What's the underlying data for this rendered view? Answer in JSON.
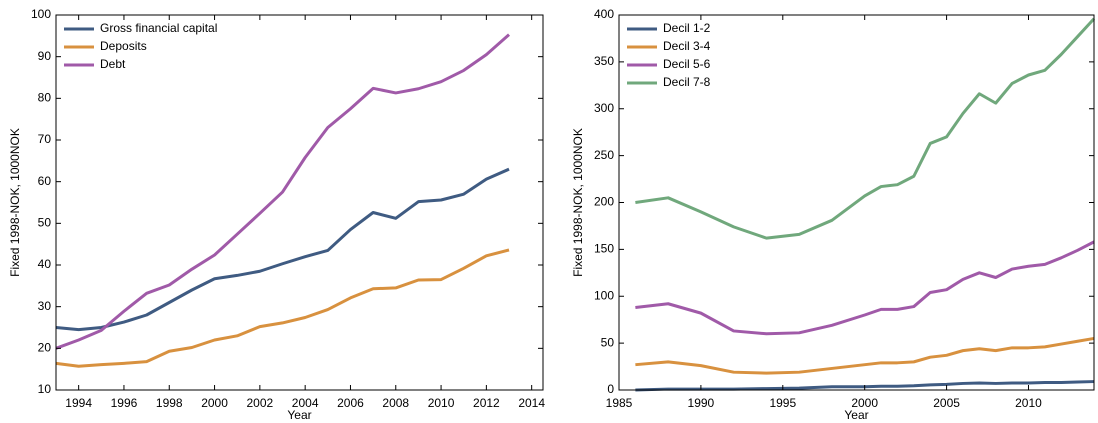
{
  "chart_data": [
    {
      "type": "line",
      "x_label": "Year",
      "y_label": "Fixed 1998-NOK, 1000NOK",
      "x": [
        1993,
        1994,
        1995,
        1996,
        1997,
        1998,
        1999,
        2000,
        2001,
        2002,
        2003,
        2004,
        2005,
        2006,
        2007,
        2008,
        2009,
        2010,
        2011,
        2012,
        2013
      ],
      "xlim": [
        1993,
        2014.5
      ],
      "xticks": [
        1994,
        1996,
        1998,
        2000,
        2002,
        2004,
        2006,
        2008,
        2010,
        2012,
        2014
      ],
      "ylim": [
        10,
        100
      ],
      "yticks": [
        10,
        20,
        30,
        40,
        50,
        60,
        70,
        80,
        90,
        100
      ],
      "legend": "upper-left",
      "series": [
        {
          "name": "Gross financial capital",
          "color": "#3f5b82",
          "values": [
            25,
            24.5,
            25,
            26.3,
            28,
            31,
            34,
            36.7,
            37.5,
            38.5,
            40.3,
            42,
            43.5,
            48.5,
            52.6,
            51.2,
            55.2,
            55.6,
            57,
            60.6,
            63
          ]
        },
        {
          "name": "Deposits",
          "color": "#d8913f",
          "values": [
            16.4,
            15.7,
            16.1,
            16.4,
            16.8,
            19.3,
            20.2,
            22,
            23,
            25.2,
            26.1,
            27.4,
            29.3,
            32.1,
            34.3,
            34.5,
            36.4,
            36.5,
            39.2,
            42.2,
            43.6
          ]
        },
        {
          "name": "Debt",
          "color": "#a05aa8",
          "values": [
            20,
            22,
            24.3,
            28.9,
            33.2,
            35.2,
            39,
            42.4,
            47.4,
            52.4,
            57.5,
            65.8,
            73,
            77.5,
            82.4,
            81.3,
            82.3,
            84,
            86.7,
            90.5,
            95.3
          ]
        }
      ]
    },
    {
      "type": "line",
      "x_label": "Year",
      "y_label": "Fixed 1998-NOK, 1000NOK",
      "x": [
        1986,
        1988,
        1990,
        1992,
        1994,
        1996,
        1998,
        2000,
        2001,
        2002,
        2003,
        2004,
        2005,
        2006,
        2007,
        2008,
        2009,
        2010,
        2011,
        2012,
        2013,
        2014
      ],
      "xlim": [
        1985,
        2014
      ],
      "xticks": [
        1985,
        1990,
        1995,
        2000,
        2005,
        2010
      ],
      "ylim": [
        0,
        400
      ],
      "yticks": [
        0,
        50,
        100,
        150,
        200,
        250,
        300,
        350,
        400
      ],
      "legend": "upper-left",
      "series": [
        {
          "name": "Decil 1-2",
          "color": "#3f5b82",
          "values": [
            0,
            1,
            1,
            1,
            1.5,
            2,
            3.5,
            3.5,
            4,
            4,
            4.5,
            5.5,
            6,
            7,
            7.5,
            7,
            7.5,
            7.5,
            8,
            8,
            8.5,
            9
          ]
        },
        {
          "name": "Decil 3-4",
          "color": "#d8913f",
          "values": [
            27,
            30,
            26,
            19,
            18,
            19,
            23,
            27,
            29,
            29,
            30,
            35,
            37,
            42,
            44,
            42,
            45,
            45,
            46,
            49,
            52,
            55
          ]
        },
        {
          "name": "Decil 5-6",
          "color": "#a05aa8",
          "values": [
            88,
            92,
            82,
            63,
            60,
            61,
            69,
            80,
            86,
            86,
            89,
            104,
            107,
            118,
            125,
            120,
            129,
            132,
            134,
            141,
            149,
            158
          ]
        },
        {
          "name": "Decil 7-8",
          "color": "#70a87c",
          "values": [
            200,
            205,
            190,
            174,
            162,
            166,
            181,
            207,
            217,
            219,
            228,
            263,
            270,
            295,
            316,
            306,
            327,
            336,
            341,
            358,
            377,
            396
          ]
        }
      ]
    }
  ]
}
